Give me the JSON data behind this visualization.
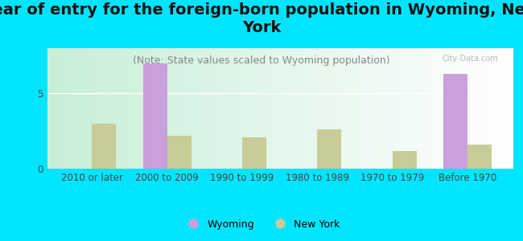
{
  "title": "Year of entry for the foreign-born population in Wyoming, New\nYork",
  "subtitle": "(Note: State values scaled to Wyoming population)",
  "categories": [
    "2010 or later",
    "2000 to 2009",
    "1990 to 1999",
    "1980 to 1989",
    "1970 to 1979",
    "Before 1970"
  ],
  "wyoming_values": [
    0,
    7.0,
    0,
    0,
    0,
    6.3
  ],
  "newyork_values": [
    3.0,
    2.2,
    2.1,
    2.6,
    1.2,
    1.6
  ],
  "wyoming_color": "#c9a0dc",
  "newyork_color": "#c8cc96",
  "background_outer": "#00e5ff",
  "background_plot_left": "#c8eed8",
  "background_plot_right": "#ffffff",
  "ylim": [
    0,
    8
  ],
  "yticks": [
    0,
    5
  ],
  "bar_width": 0.32,
  "title_fontsize": 14,
  "subtitle_fontsize": 9,
  "tick_fontsize": 8.5,
  "legend_fontsize": 9,
  "watermark": "City-Data.com"
}
